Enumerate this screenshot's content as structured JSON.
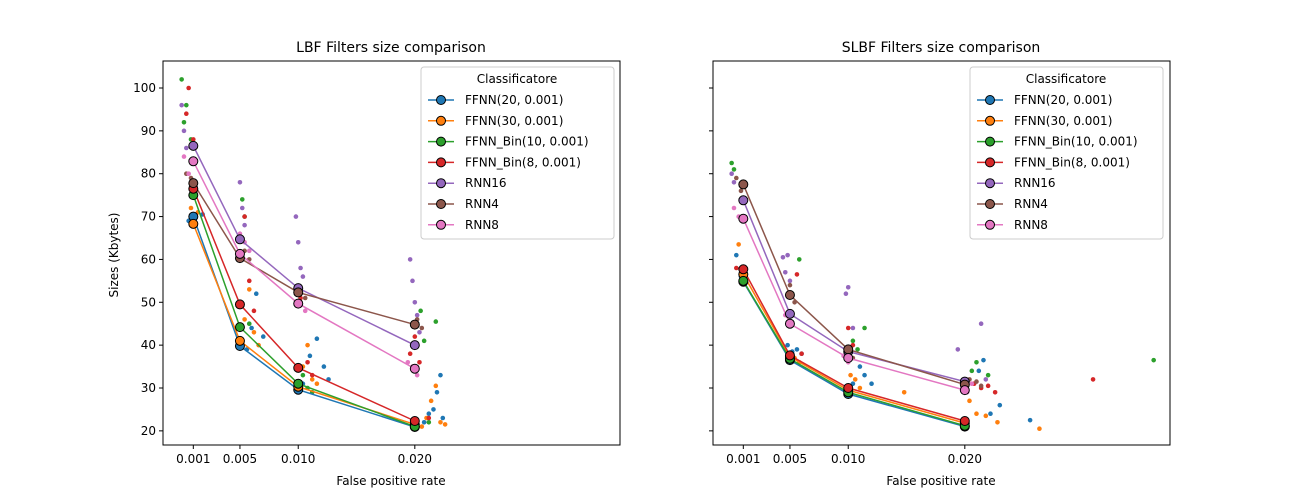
{
  "chart_data": [
    {
      "type": "line",
      "title": "LBF Filters size comparison",
      "xlabel": "False positive rate",
      "ylabel": "Sizes (Kbytes)",
      "xlim": [
        -0.0016,
        0.0376
      ],
      "ylim": [
        16.7,
        106.3
      ],
      "xticks": [
        0.001,
        0.005,
        0.01,
        0.02
      ],
      "xtick_labels": [
        "0.001",
        "0.005",
        "0.010",
        "0.020"
      ],
      "yticks": [
        20,
        30,
        40,
        50,
        60,
        70,
        80,
        90,
        100
      ],
      "ytick_labels": [
        "20",
        "30",
        "40",
        "50",
        "60",
        "70",
        "80",
        "90",
        "100"
      ],
      "legend_title": "Classificatore",
      "legend_position": "top-right",
      "grid": false,
      "series": [
        {
          "name": "FFNN(20, 0.001)",
          "color": "#1f77b4",
          "x": [
            0.001,
            0.005,
            0.01,
            0.02
          ],
          "y": [
            70.0,
            39.8,
            29.6,
            20.9
          ],
          "scatter": [
            [
              0.0006,
              69
            ],
            [
              0.0012,
              68
            ],
            [
              0.0018,
              70.5
            ],
            [
              0.0056,
              39
            ],
            [
              0.006,
              44
            ],
            [
              0.0064,
              52
            ],
            [
              0.007,
              42
            ],
            [
              0.0104,
              31
            ],
            [
              0.011,
              37.5
            ],
            [
              0.0116,
              41.5
            ],
            [
              0.0122,
              35
            ],
            [
              0.0126,
              32
            ],
            [
              0.0208,
              22
            ],
            [
              0.0212,
              24
            ],
            [
              0.0216,
              25
            ],
            [
              0.0219,
              29
            ],
            [
              0.0222,
              33
            ],
            [
              0.0224,
              23
            ]
          ]
        },
        {
          "name": "FFNN(30, 0.001)",
          "color": "#ff7f0e",
          "x": [
            0.001,
            0.005,
            0.01,
            0.02
          ],
          "y": [
            68.3,
            41.0,
            30.3,
            21.5
          ],
          "scatter": [
            [
              0.0008,
              72
            ],
            [
              0.0014,
              71
            ],
            [
              0.0054,
              46
            ],
            [
              0.0058,
              53
            ],
            [
              0.0062,
              43
            ],
            [
              0.0066,
              40
            ],
            [
              0.0104,
              35
            ],
            [
              0.0108,
              40
            ],
            [
              0.0112,
              32
            ],
            [
              0.0116,
              31
            ],
            [
              0.0206,
              21
            ],
            [
              0.021,
              23
            ],
            [
              0.0214,
              27
            ],
            [
              0.0218,
              30.5
            ],
            [
              0.0222,
              22
            ],
            [
              0.0226,
              21.5
            ]
          ]
        },
        {
          "name": "FFNN_Bin(10, 0.001)",
          "color": "#2ca02c",
          "x": [
            0.001,
            0.005,
            0.01,
            0.02
          ],
          "y": [
            75.0,
            44.2,
            31.0,
            21.0
          ],
          "scatter": [
            [
              0.0,
              102
            ],
            [
              0.0002,
              92
            ],
            [
              0.0004,
              96
            ],
            [
              0.0008,
              88
            ],
            [
              0.0052,
              74
            ],
            [
              0.0054,
              70
            ],
            [
              0.0058,
              45
            ],
            [
              0.0104,
              33
            ],
            [
              0.0108,
              30
            ],
            [
              0.0112,
              29
            ],
            [
              0.0202,
              45
            ],
            [
              0.0205,
              48
            ],
            [
              0.0208,
              41
            ],
            [
              0.0212,
              22
            ],
            [
              0.0218,
              45.5
            ]
          ]
        },
        {
          "name": "FFNN_Bin(8, 0.001)",
          "color": "#d62728",
          "x": [
            0.001,
            0.005,
            0.01,
            0.02
          ],
          "y": [
            76.5,
            49.5,
            34.7,
            22.3
          ],
          "scatter": [
            [
              0.0006,
              100
            ],
            [
              0.0004,
              94
            ],
            [
              0.001,
              88
            ],
            [
              0.0054,
              70
            ],
            [
              0.0058,
              55
            ],
            [
              0.0062,
              48
            ],
            [
              0.0102,
              51
            ],
            [
              0.0108,
              36
            ],
            [
              0.0112,
              33
            ],
            [
              0.0196,
              38
            ],
            [
              0.02,
              42
            ],
            [
              0.0204,
              36
            ],
            [
              0.0212,
              23
            ]
          ]
        },
        {
          "name": "RNN16",
          "color": "#9467bd",
          "x": [
            0.001,
            0.005,
            0.01,
            0.02
          ],
          "y": [
            86.5,
            64.7,
            53.3,
            40.0
          ],
          "scatter": [
            [
              0.0,
              96
            ],
            [
              0.0002,
              90
            ],
            [
              0.0004,
              86
            ],
            [
              0.005,
              78
            ],
            [
              0.0052,
              72
            ],
            [
              0.0054,
              68
            ],
            [
              0.0098,
              70
            ],
            [
              0.01,
              64
            ],
            [
              0.0102,
              58
            ],
            [
              0.0104,
              56
            ],
            [
              0.0196,
              60
            ],
            [
              0.0198,
              55
            ],
            [
              0.02,
              50
            ],
            [
              0.0202,
              47
            ],
            [
              0.0204,
              43
            ]
          ]
        },
        {
          "name": "RNN4",
          "color": "#8c564b",
          "x": [
            0.001,
            0.005,
            0.01,
            0.02
          ],
          "y": [
            77.8,
            60.3,
            52.3,
            44.8
          ],
          "scatter": [
            [
              0.0004,
              80
            ],
            [
              0.0008,
              79
            ],
            [
              0.0012,
              76
            ],
            [
              0.0054,
              62
            ],
            [
              0.0058,
              60
            ],
            [
              0.0102,
              53
            ],
            [
              0.0106,
              51
            ],
            [
              0.0202,
              46
            ],
            [
              0.0206,
              44
            ]
          ]
        },
        {
          "name": "RNN8",
          "color": "#e377c2",
          "x": [
            0.001,
            0.005,
            0.01,
            0.02
          ],
          "y": [
            82.9,
            61.3,
            49.7,
            34.5
          ],
          "scatter": [
            [
              0.0002,
              84
            ],
            [
              0.0006,
              80
            ],
            [
              0.001,
              78
            ],
            [
              0.005,
              66
            ],
            [
              0.0054,
              64
            ],
            [
              0.0058,
              62
            ],
            [
              0.0098,
              52
            ],
            [
              0.0102,
              50
            ],
            [
              0.0106,
              48
            ],
            [
              0.0194,
              36
            ],
            [
              0.0198,
              35
            ],
            [
              0.0202,
              33
            ]
          ]
        }
      ]
    },
    {
      "type": "line",
      "title": "SLBF Filters size comparison",
      "xlabel": "False positive rate",
      "ylabel": "",
      "xlim": [
        -0.0016,
        0.0376
      ],
      "ylim": [
        16.7,
        106.3
      ],
      "xticks": [
        0.001,
        0.005,
        0.01,
        0.02
      ],
      "xtick_labels": [
        "0.001",
        "0.005",
        "0.010",
        "0.020"
      ],
      "yticks": [
        20,
        30,
        40,
        50,
        60,
        70,
        80,
        90,
        100
      ],
      "ytick_labels": [],
      "legend_title": "Classificatore",
      "legend_position": "top-right",
      "grid": false,
      "series": [
        {
          "name": "FFNN(20, 0.001)",
          "color": "#1f77b4",
          "x": [
            0.001,
            0.005,
            0.01,
            0.02
          ],
          "y": [
            54.8,
            36.5,
            28.6,
            21.0
          ],
          "scatter": [
            [
              0.0004,
              61
            ],
            [
              0.0008,
              56
            ],
            [
              0.0048,
              40
            ],
            [
              0.0052,
              38.5
            ],
            [
              0.0056,
              39
            ],
            [
              0.006,
              38
            ],
            [
              0.0104,
              31
            ],
            [
              0.011,
              35
            ],
            [
              0.0114,
              33
            ],
            [
              0.012,
              31
            ],
            [
              0.0212,
              34
            ],
            [
              0.0216,
              36.5
            ],
            [
              0.0222,
              24
            ],
            [
              0.023,
              26
            ],
            [
              0.0256,
              22.5
            ]
          ]
        },
        {
          "name": "FFNN(30, 0.001)",
          "color": "#ff7f0e",
          "x": [
            0.001,
            0.005,
            0.01,
            0.02
          ],
          "y": [
            56.5,
            37.3,
            29.5,
            21.8
          ],
          "scatter": [
            [
              0.0006,
              63.5
            ],
            [
              0.001,
              58
            ],
            [
              0.0054,
              37
            ],
            [
              0.0058,
              36
            ],
            [
              0.0098,
              37
            ],
            [
              0.0102,
              33
            ],
            [
              0.0106,
              32
            ],
            [
              0.011,
              30
            ],
            [
              0.0148,
              29
            ],
            [
              0.0204,
              27
            ],
            [
              0.021,
              24
            ],
            [
              0.0218,
              23.5
            ],
            [
              0.0228,
              22
            ],
            [
              0.0264,
              20.5
            ]
          ]
        },
        {
          "name": "FFNN_Bin(10, 0.001)",
          "color": "#2ca02c",
          "x": [
            0.001,
            0.005,
            0.01,
            0.02
          ],
          "y": [
            55.0,
            36.8,
            29.0,
            21.2
          ],
          "scatter": [
            [
              0.0,
              82.5
            ],
            [
              0.0002,
              81
            ],
            [
              0.0052,
              52
            ],
            [
              0.0058,
              60
            ],
            [
              0.0104,
              41
            ],
            [
              0.0108,
              39
            ],
            [
              0.0114,
              44
            ],
            [
              0.0206,
              34
            ],
            [
              0.021,
              36
            ],
            [
              0.022,
              33
            ],
            [
              0.0362,
              36.5
            ]
          ]
        },
        {
          "name": "FFNN_Bin(8, 0.001)",
          "color": "#d62728",
          "x": [
            0.001,
            0.005,
            0.01,
            0.02
          ],
          "y": [
            57.7,
            37.6,
            30.0,
            22.3
          ],
          "scatter": [
            [
              0.0004,
              58
            ],
            [
              0.0008,
              55
            ],
            [
              0.0056,
              56.5
            ],
            [
              0.006,
              38
            ],
            [
              0.01,
              44
            ],
            [
              0.0104,
              40
            ],
            [
              0.0208,
              31
            ],
            [
              0.0214,
              30
            ],
            [
              0.022,
              30.5
            ],
            [
              0.0226,
              29
            ],
            [
              0.031,
              32
            ]
          ]
        },
        {
          "name": "RNN16",
          "color": "#9467bd",
          "x": [
            0.001,
            0.005,
            0.01,
            0.02
          ],
          "y": [
            73.8,
            47.3,
            38.5,
            31.5
          ],
          "scatter": [
            [
              0.0,
              80
            ],
            [
              0.0002,
              78
            ],
            [
              0.0044,
              60.5
            ],
            [
              0.0046,
              57
            ],
            [
              0.0048,
              61
            ],
            [
              0.005,
              55
            ],
            [
              0.0098,
              52
            ],
            [
              0.01,
              53.5
            ],
            [
              0.0104,
              44
            ],
            [
              0.0194,
              39
            ],
            [
              0.0214,
              45
            ],
            [
              0.0218,
              32
            ]
          ]
        },
        {
          "name": "RNN4",
          "color": "#8c564b",
          "x": [
            0.001,
            0.005,
            0.01,
            0.02
          ],
          "y": [
            77.5,
            51.7,
            39.0,
            30.8
          ],
          "scatter": [
            [
              0.0004,
              79
            ],
            [
              0.0008,
              76
            ],
            [
              0.005,
              54
            ],
            [
              0.0054,
              50
            ],
            [
              0.01,
              39
            ],
            [
              0.0104,
              37
            ],
            [
              0.0204,
              32
            ],
            [
              0.021,
              31.5
            ],
            [
              0.0214,
              30.5
            ]
          ]
        },
        {
          "name": "RNN8",
          "color": "#e377c2",
          "x": [
            0.001,
            0.005,
            0.01,
            0.02
          ],
          "y": [
            69.5,
            45.0,
            37.0,
            29.5
          ],
          "scatter": [
            [
              0.0002,
              72
            ],
            [
              0.0006,
              70
            ],
            [
              0.0046,
              47
            ],
            [
              0.005,
              45
            ],
            [
              0.0096,
              37.5
            ],
            [
              0.01,
              36
            ],
            [
              0.0198,
              30
            ],
            [
              0.0202,
              29
            ],
            [
              0.0206,
              31
            ]
          ]
        }
      ]
    }
  ]
}
